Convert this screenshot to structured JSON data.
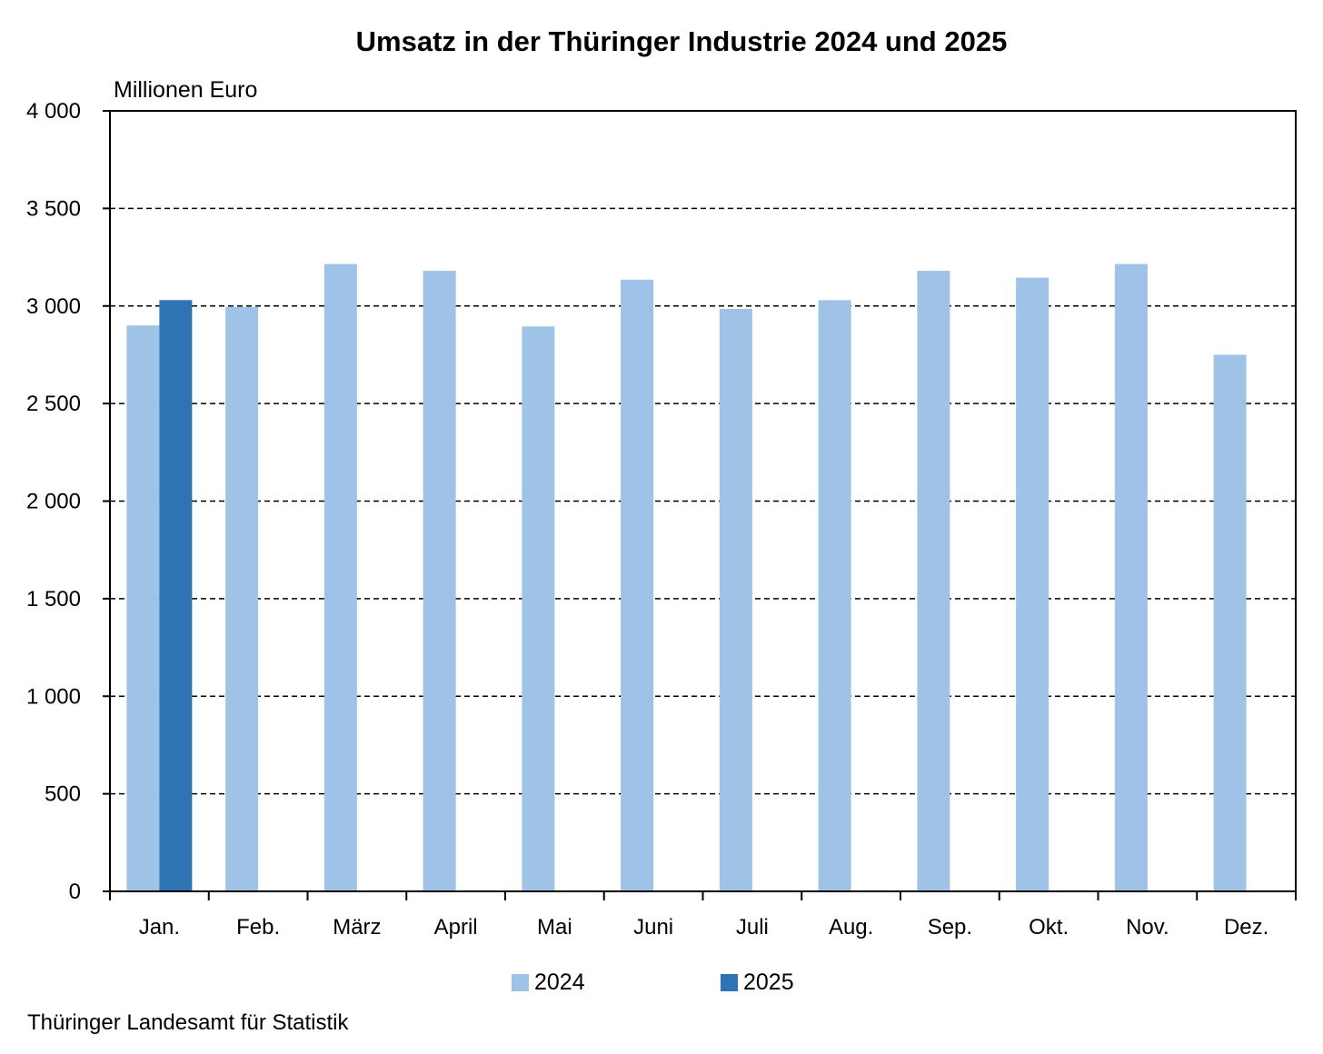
{
  "chart_data": {
    "type": "bar",
    "title": "Umsatz in der Thüringer Industrie 2024 und 2025",
    "unit_label": "Millionen Euro",
    "categories": [
      "Jan.",
      "Feb.",
      "März",
      "April",
      "Mai",
      "Juni",
      "Juli",
      "Aug.",
      "Sep.",
      "Okt.",
      "Nov.",
      "Dez."
    ],
    "series": [
      {
        "name": "2024",
        "color": "#9fc3e7",
        "values": [
          2900,
          2995,
          3215,
          3180,
          2895,
          3135,
          2985,
          3030,
          3180,
          3145,
          3215,
          2750
        ]
      },
      {
        "name": "2025",
        "color": "#2e74b5",
        "values": [
          3030,
          null,
          null,
          null,
          null,
          null,
          null,
          null,
          null,
          null,
          null,
          null
        ]
      }
    ],
    "ylim": [
      0,
      4000
    ],
    "yticks": [
      0,
      500,
      1000,
      1500,
      2000,
      2500,
      3000,
      3500,
      4000
    ],
    "ytick_labels": [
      "0",
      "500",
      "1 000",
      "1 500",
      "2 000",
      "2 500",
      "3 000",
      "3 500",
      "4 000"
    ],
    "grid": "horizontal dashed",
    "legend_position": "bottom"
  },
  "source_note": "Thüringer Landesamt für Statistik"
}
